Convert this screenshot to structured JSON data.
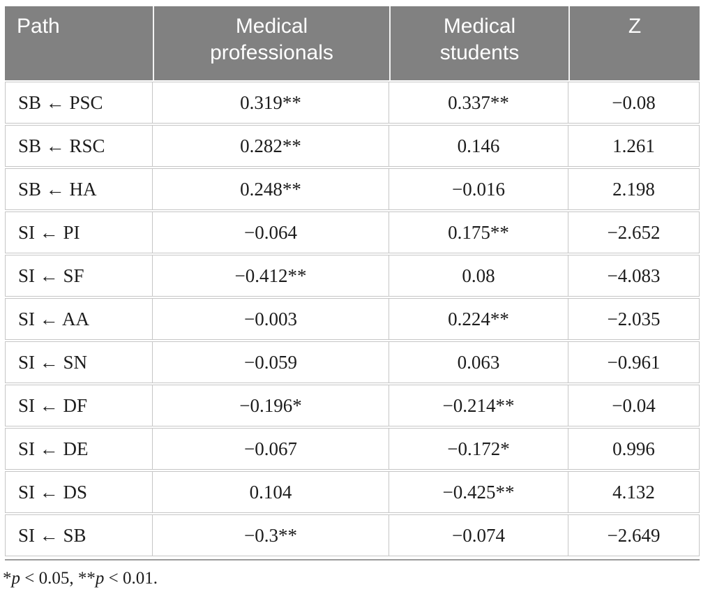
{
  "table": {
    "columns": [
      {
        "key": "path",
        "label": "Path"
      },
      {
        "key": "professionals",
        "label": "Medical professionals"
      },
      {
        "key": "students",
        "label": "Medical students"
      },
      {
        "key": "z",
        "label": "Z"
      }
    ],
    "rows": [
      {
        "path": "SB ← PSC",
        "professionals": "0.319**",
        "students": "0.337**",
        "z": "−0.08"
      },
      {
        "path": "SB ← RSC",
        "professionals": "0.282**",
        "students": "0.146",
        "z": "1.261"
      },
      {
        "path": "SB ← HA",
        "professionals": "0.248**",
        "students": "−0.016",
        "z": "2.198"
      },
      {
        "path": "SI ← PI",
        "professionals": "−0.064",
        "students": "0.175**",
        "z": "−2.652"
      },
      {
        "path": "SI ← SF",
        "professionals": "−0.412**",
        "students": "0.08",
        "z": "−4.083"
      },
      {
        "path": "SI ← AA",
        "professionals": "−0.003",
        "students": "0.224**",
        "z": "−2.035"
      },
      {
        "path": "SI ← SN",
        "professionals": "−0.059",
        "students": "0.063",
        "z": "−0.961"
      },
      {
        "path": "SI ← DF",
        "professionals": "−0.196*",
        "students": "−0.214**",
        "z": "−0.04"
      },
      {
        "path": "SI ← DE",
        "professionals": "−0.067",
        "students": "−0.172*",
        "z": "0.996"
      },
      {
        "path": "SI ← DS",
        "professionals": "0.104",
        "students": "−0.425**",
        "z": "4.132"
      },
      {
        "path": "SI ← SB",
        "professionals": "−0.3**",
        "students": "−0.074",
        "z": "−2.649"
      }
    ]
  },
  "footnote": {
    "parts": [
      {
        "text": "*"
      },
      {
        "text": "p"
      },
      {
        "text": " < 0.05, "
      },
      {
        "text": "**"
      },
      {
        "text": "p"
      },
      {
        "text": " < 0.01."
      }
    ]
  },
  "colors": {
    "header_bg": "#818181",
    "header_text": "#ffffff",
    "body_text": "#1c1c1c",
    "cell_border": "#c6c6c6",
    "bottom_rule": "#9b9b9b"
  }
}
